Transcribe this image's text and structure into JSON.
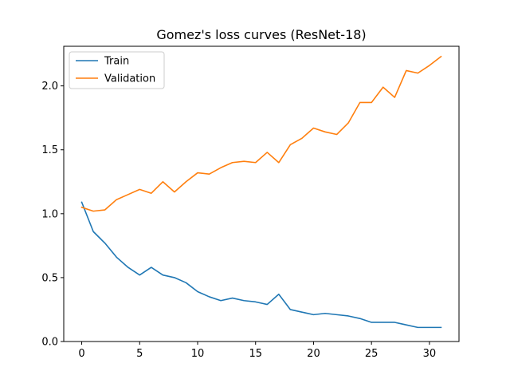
{
  "chart_data": {
    "type": "line",
    "title": "Gomez's loss curves (ResNet-18)",
    "xlabel": "",
    "ylabel": "",
    "xlim": [
      -1.55,
      32.55
    ],
    "ylim": [
      0,
      2.31
    ],
    "x_ticks": [
      0,
      5,
      10,
      15,
      20,
      25,
      30
    ],
    "y_ticks": [
      0.0,
      0.5,
      1.0,
      1.5,
      2.0
    ],
    "y_tick_labels": [
      "0.0",
      "0.5",
      "1.0",
      "1.5",
      "2.0"
    ],
    "grid": false,
    "legend_position": "upper-left",
    "x": [
      0,
      1,
      2,
      3,
      4,
      5,
      6,
      7,
      8,
      9,
      10,
      11,
      12,
      13,
      14,
      15,
      16,
      17,
      18,
      19,
      20,
      21,
      22,
      23,
      24,
      25,
      26,
      27,
      28,
      29,
      30,
      31
    ],
    "series": [
      {
        "name": "Train",
        "color": "#1f77b4",
        "values": [
          1.09,
          0.86,
          0.77,
          0.66,
          0.58,
          0.52,
          0.58,
          0.52,
          0.5,
          0.46,
          0.39,
          0.35,
          0.32,
          0.34,
          0.32,
          0.31,
          0.29,
          0.37,
          0.25,
          0.23,
          0.21,
          0.22,
          0.21,
          0.2,
          0.18,
          0.15,
          0.15,
          0.15,
          0.13,
          0.11,
          0.11,
          0.11
        ]
      },
      {
        "name": "Validation",
        "color": "#ff7f0e",
        "values": [
          1.05,
          1.02,
          1.03,
          1.11,
          1.15,
          1.19,
          1.16,
          1.25,
          1.17,
          1.25,
          1.32,
          1.31,
          1.36,
          1.4,
          1.41,
          1.4,
          1.48,
          1.4,
          1.54,
          1.59,
          1.67,
          1.64,
          1.62,
          1.71,
          1.87,
          1.87,
          1.99,
          1.91,
          2.12,
          2.1,
          2.16,
          2.23
        ]
      }
    ]
  }
}
